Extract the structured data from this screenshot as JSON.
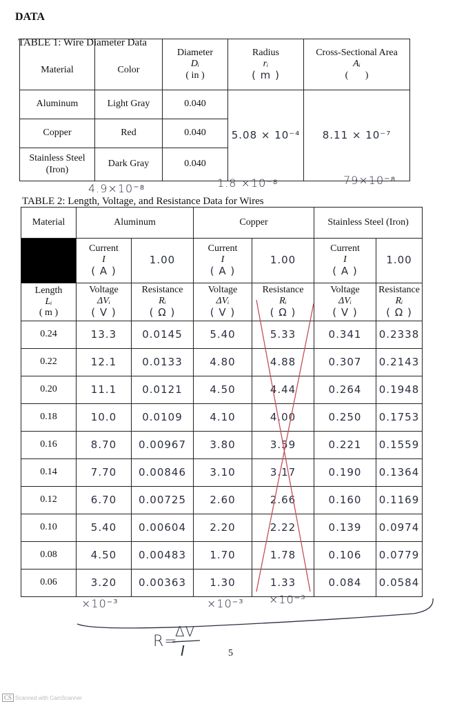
{
  "heading": "DATA",
  "table1": {
    "title": "TABLE 1: Wire Diameter Data",
    "headers": {
      "material": "Material",
      "color": "Color",
      "diameter": [
        "Diameter",
        "Dᵢ",
        "( in )"
      ],
      "radius": [
        "Radius",
        "rᵢ",
        "( m )"
      ],
      "area": [
        "Cross-Sectional Area",
        "Aᵢ",
        "(       )"
      ]
    },
    "rows": [
      [
        "Aluminum",
        "Light Gray",
        "0.040"
      ],
      [
        "Copper",
        "Red",
        "0.040"
      ],
      [
        "Stainless Steel (Iron)",
        "Dark Gray",
        "0.040"
      ]
    ],
    "radius": "5.08 × 10⁻⁴",
    "area": "8.11 × 10⁻⁷"
  },
  "annotations": [
    "4.9×10⁻⁸",
    "1.8 ×10⁻⁸",
    "79×10⁻⁸"
  ],
  "table2": {
    "title": "TABLE 2: Length, Voltage, and Resistance Data for Wires",
    "material_header": "Material",
    "length_header": [
      "Length",
      "Lᵢ",
      "( m )"
    ],
    "groups": [
      {
        "name": "Aluminum",
        "current": [
          "Current",
          "I",
          "( A )"
        ],
        "current_value": "1.00",
        "voltage": [
          "Voltage",
          "ΔVᵢ",
          "( V )"
        ],
        "resistance": [
          "Resistance",
          "Rᵢ",
          "( Ω )"
        ]
      },
      {
        "name": "Copper",
        "current": [
          "Current",
          "I",
          "( A )"
        ],
        "current_value": "1.00",
        "voltage": [
          "Voltage",
          "ΔVᵢ",
          "( V )"
        ],
        "resistance": [
          "Resistance",
          "Rᵢ",
          "( Ω )"
        ]
      },
      {
        "name": "Stainless Steel (Iron)",
        "current": [
          "Current",
          "I",
          "( A )"
        ],
        "current_value": "1.00",
        "voltage": [
          "Voltage",
          "ΔVᵢ",
          "( V )"
        ],
        "resistance": [
          "Resistance",
          "Rᵢ",
          "( Ω )"
        ]
      }
    ],
    "rows": [
      [
        "0.24",
        "13.3",
        "0.0145",
        "5.40",
        "5.33",
        "0.341",
        "0.2338"
      ],
      [
        "0.22",
        "12.1",
        "0.0133",
        "4.80",
        "4.88",
        "0.307",
        "0.2143"
      ],
      [
        "0.20",
        "11.1",
        "0.0121",
        "4.50",
        "4.44",
        "0.264",
        "0.1948"
      ],
      [
        "0.18",
        "10.0",
        "0.0109",
        "4.10",
        "4.00",
        "0.250",
        "0.1753"
      ],
      [
        "0.16",
        "8.70",
        "0.00967",
        "3.80",
        "3.59",
        "0.221",
        "0.1559"
      ],
      [
        "0.14",
        "7.70",
        "0.00846",
        "3.10",
        "3.17",
        "0.190",
        "0.1364"
      ],
      [
        "0.12",
        "6.70",
        "0.00725",
        "2.60",
        "2.66",
        "0.160",
        "0.1169"
      ],
      [
        "0.10",
        "5.40",
        "0.00604",
        "2.20",
        "2.22",
        "0.139",
        "0.0974"
      ],
      [
        "0.08",
        "4.50",
        "0.00483",
        "1.70",
        "1.78",
        "0.106",
        "0.0779"
      ],
      [
        "0.06",
        "3.20",
        "0.00363",
        "1.30",
        "1.33",
        "0.084",
        "0.0584"
      ]
    ]
  },
  "multipliers": [
    "×10⁻³",
    "×10⁻³",
    "×10⁻³"
  ],
  "formula": {
    "lhs": "R=",
    "numerator": "ΔV",
    "denominator": "I"
  },
  "page_number": "5",
  "footer": {
    "logo": "CS",
    "text": "Scanned with CamScanner"
  }
}
